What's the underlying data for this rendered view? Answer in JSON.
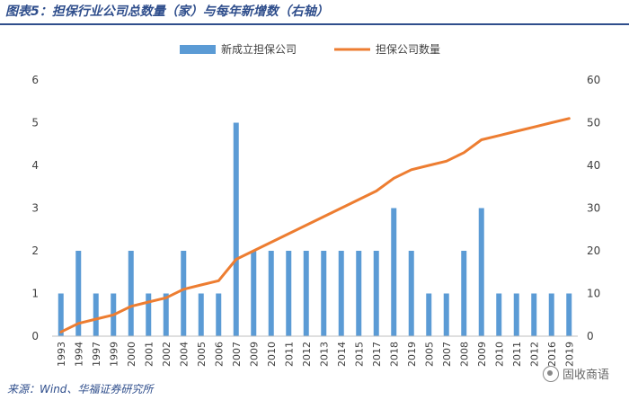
{
  "title": "图表5：担保行业公司总数量（家）与每年新增数（右轴）",
  "source": "来源：Wind、华福证券研究所",
  "watermark": "固收商语",
  "chart_data": {
    "type": "bar+line",
    "categories": [
      "1993",
      "1994",
      "1997",
      "1999",
      "2000",
      "2001",
      "2002",
      "2004",
      "2005",
      "2006",
      "2007",
      "2009",
      "2010",
      "2011",
      "2012",
      "2013",
      "2014",
      "2015",
      "2017",
      "2018",
      "2019",
      "2005",
      "2007",
      "2008",
      "2009",
      "2010",
      "2011",
      "2012",
      "2016",
      "2019"
    ],
    "series": [
      {
        "name": "新成立担保公司",
        "type": "bar",
        "axis": "left",
        "color": "#5b9bd5",
        "values": [
          1,
          2,
          1,
          1,
          2,
          1,
          1,
          2,
          1,
          1,
          5,
          2,
          2,
          2,
          2,
          2,
          2,
          2,
          2,
          3,
          2,
          1,
          1,
          2,
          3,
          1,
          1,
          1,
          1,
          1
        ]
      },
      {
        "name": "担保公司数量",
        "type": "line",
        "axis": "right",
        "color": "#ed7d31",
        "values": [
          1,
          3,
          4,
          5,
          7,
          8,
          9,
          11,
          12,
          13,
          18,
          20,
          22,
          24,
          26,
          28,
          30,
          32,
          34,
          37,
          39,
          40,
          41,
          43,
          46,
          47,
          48,
          49,
          50,
          51
        ]
      }
    ],
    "left_axis": {
      "min": 0,
      "max": 6,
      "ticks": [
        "0",
        "1",
        "2",
        "3",
        "4",
        "5",
        "6"
      ]
    },
    "right_axis": {
      "min": 0,
      "max": 60,
      "ticks": [
        "0",
        "10",
        "20",
        "30",
        "40",
        "50",
        "60"
      ]
    },
    "grid": false,
    "legend_position": "top-center"
  }
}
